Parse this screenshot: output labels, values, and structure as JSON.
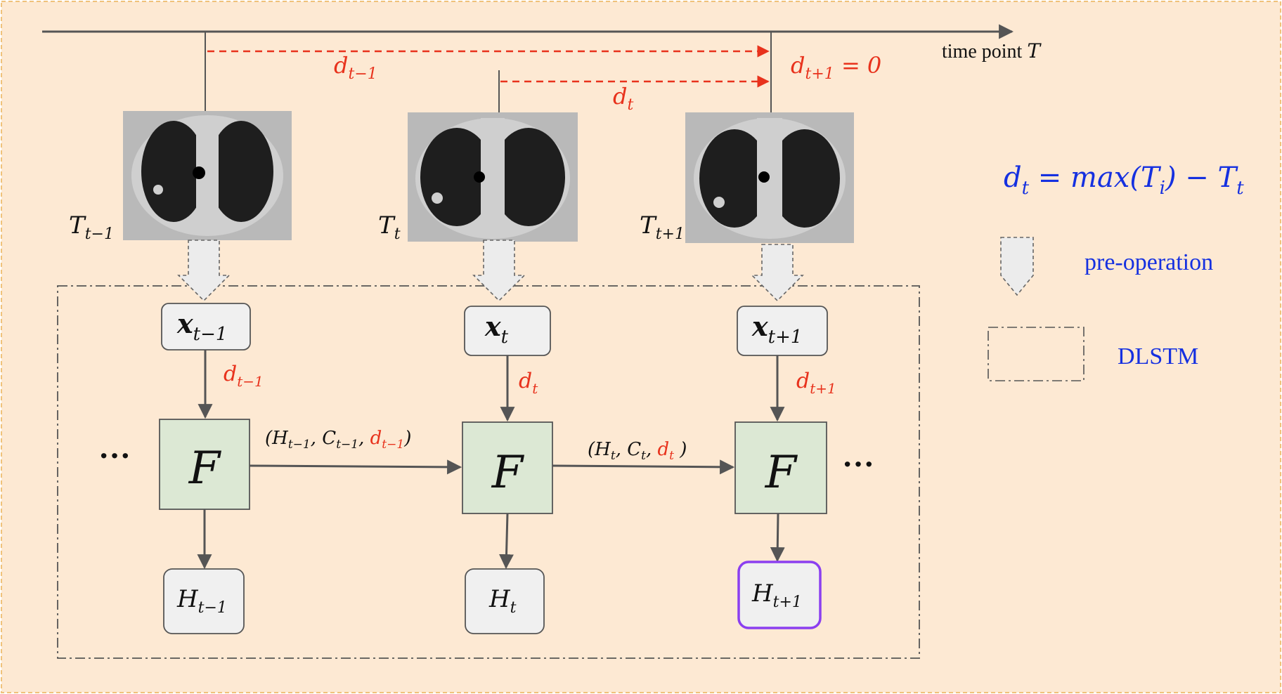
{
  "colors": {
    "background": "#fde9d3",
    "frame_border": "#f0c27a",
    "red": "#e8321c",
    "blue": "#1530e0",
    "line": "#555555",
    "cell_fill": "#dce8d4",
    "box_fill": "#f0f0f0",
    "highlight": "#8b3ff0"
  },
  "timeline": {
    "label_prefix": "time point ",
    "label_var": "T"
  },
  "intervals": {
    "prev": {
      "base": "d",
      "sub": "t−1"
    },
    "curr": {
      "base": "d",
      "sub": "t"
    },
    "next_label": {
      "base": "d",
      "sub": "t+1",
      "rest": " = 0"
    }
  },
  "scans": [
    {
      "label_base": "T",
      "label_sub": "t−1"
    },
    {
      "label_base": "T",
      "label_sub": "t"
    },
    {
      "label_base": "T",
      "label_sub": "t+1"
    }
  ],
  "inputs": [
    {
      "base": "x",
      "sub": "t−1"
    },
    {
      "base": "x",
      "sub": "t"
    },
    {
      "base": "x",
      "sub": "t+1"
    }
  ],
  "input_intervals": [
    {
      "base": "d",
      "sub": "t−1"
    },
    {
      "base": "d",
      "sub": "t"
    },
    {
      "base": "d",
      "sub": "t+1"
    }
  ],
  "cells": [
    {
      "label": "F"
    },
    {
      "label": "F"
    },
    {
      "label": "F"
    }
  ],
  "ellipsis": "···",
  "state_labels": [
    {
      "H_sub": "t−1",
      "C_sub": "t−1",
      "d_sub": "t−1"
    },
    {
      "H_sub": "t",
      "C_sub": "t",
      "d_sub": "t"
    }
  ],
  "outputs": [
    {
      "base": "H",
      "sub": "t−1"
    },
    {
      "base": "H",
      "sub": "t"
    },
    {
      "base": "H",
      "sub": "t+1"
    }
  ],
  "legend": {
    "formula": {
      "lhs_base": "d",
      "lhs_sub": "t",
      "mid": " = max(T",
      "mid_sub": "i",
      "mid_close": ") − T",
      "end_sub": "t"
    },
    "pre_operation": "pre-operation",
    "dlstm": "DLSTM"
  }
}
